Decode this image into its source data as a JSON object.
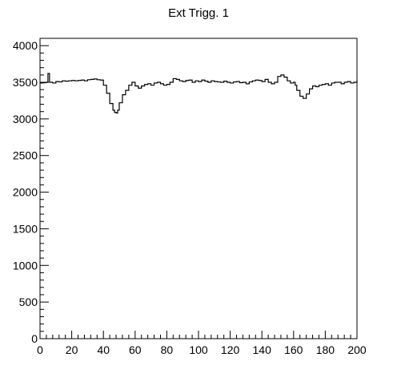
{
  "chart_data": {
    "type": "line",
    "title": "Ext Trigg. 1",
    "xlabel": "",
    "ylabel": "",
    "xlim": [
      0,
      200
    ],
    "ylim": [
      0,
      4100
    ],
    "x_ticks": [
      0,
      20,
      40,
      60,
      80,
      100,
      120,
      140,
      160,
      180,
      200
    ],
    "y_ticks": [
      0,
      500,
      1000,
      1500,
      2000,
      2500,
      3000,
      3500,
      4000
    ],
    "grid": false,
    "legend": "none",
    "series": [
      {
        "color": "#000000",
        "x": [
          0,
          2,
          4,
          5,
          6,
          8,
          10,
          12,
          14,
          16,
          18,
          20,
          22,
          24,
          26,
          28,
          30,
          32,
          34,
          36,
          38,
          40,
          42,
          44,
          46,
          47,
          48,
          49,
          50,
          52,
          54,
          56,
          58,
          60,
          62,
          64,
          66,
          68,
          70,
          72,
          74,
          76,
          78,
          80,
          82,
          84,
          86,
          88,
          90,
          92,
          94,
          96,
          98,
          100,
          102,
          104,
          106,
          108,
          110,
          112,
          114,
          116,
          118,
          120,
          122,
          124,
          126,
          128,
          130,
          132,
          134,
          136,
          138,
          140,
          142,
          144,
          146,
          148,
          150,
          152,
          154,
          156,
          158,
          160,
          161,
          162,
          164,
          166,
          168,
          170,
          172,
          174,
          176,
          178,
          180,
          182,
          184,
          186,
          188,
          190,
          192,
          194,
          196,
          198,
          200
        ],
        "y": [
          3490,
          3495,
          3500,
          3620,
          3500,
          3490,
          3510,
          3505,
          3520,
          3515,
          3520,
          3525,
          3520,
          3525,
          3530,
          3520,
          3535,
          3540,
          3545,
          3535,
          3530,
          3460,
          3350,
          3210,
          3120,
          3090,
          3080,
          3120,
          3220,
          3330,
          3390,
          3460,
          3500,
          3450,
          3420,
          3450,
          3470,
          3480,
          3460,
          3490,
          3500,
          3480,
          3460,
          3470,
          3500,
          3550,
          3540,
          3520,
          3510,
          3525,
          3530,
          3500,
          3520,
          3510,
          3530,
          3515,
          3500,
          3520,
          3510,
          3505,
          3500,
          3515,
          3500,
          3490,
          3505,
          3510,
          3495,
          3500,
          3480,
          3505,
          3520,
          3530,
          3525,
          3510,
          3540,
          3500,
          3480,
          3500,
          3580,
          3600,
          3570,
          3520,
          3490,
          3500,
          3460,
          3390,
          3310,
          3280,
          3340,
          3410,
          3450,
          3440,
          3460,
          3470,
          3480,
          3460,
          3490,
          3500,
          3500,
          3480,
          3500,
          3510,
          3490,
          3500,
          3530
        ]
      }
    ]
  }
}
